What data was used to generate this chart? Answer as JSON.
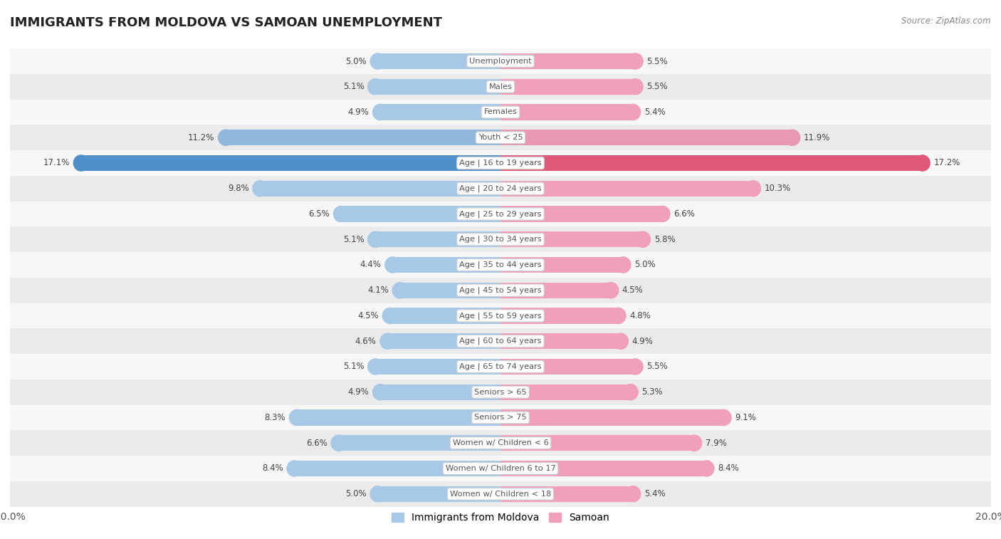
{
  "title": "IMMIGRANTS FROM MOLDOVA VS SAMOAN UNEMPLOYMENT",
  "source": "Source: ZipAtlas.com",
  "categories": [
    "Unemployment",
    "Males",
    "Females",
    "Youth < 25",
    "Age | 16 to 19 years",
    "Age | 20 to 24 years",
    "Age | 25 to 29 years",
    "Age | 30 to 34 years",
    "Age | 35 to 44 years",
    "Age | 45 to 54 years",
    "Age | 55 to 59 years",
    "Age | 60 to 64 years",
    "Age | 65 to 74 years",
    "Seniors > 65",
    "Seniors > 75",
    "Women w/ Children < 6",
    "Women w/ Children 6 to 17",
    "Women w/ Children < 18"
  ],
  "moldova_values": [
    5.0,
    5.1,
    4.9,
    11.2,
    17.1,
    9.8,
    6.5,
    5.1,
    4.4,
    4.1,
    4.5,
    4.6,
    5.1,
    4.9,
    8.3,
    6.6,
    8.4,
    5.0
  ],
  "samoan_values": [
    5.5,
    5.5,
    5.4,
    11.9,
    17.2,
    10.3,
    6.6,
    5.8,
    5.0,
    4.5,
    4.8,
    4.9,
    5.5,
    5.3,
    9.1,
    7.9,
    8.4,
    5.4
  ],
  "moldova_color": "#a8c8e8",
  "samoan_color": "#f0a0b8",
  "moldova_highlight_color": "#5090c8",
  "samoan_highlight_color": "#e05878",
  "youth_color_moldova": "#90b8dc",
  "youth_color_samoan": "#e898b0",
  "highlight_row": 4,
  "youth_row": 3,
  "background_color": "#ffffff",
  "row_alt_color": "#ebebeb",
  "row_main_color": "#f7f7f7",
  "axis_max": 20.0,
  "legend_moldova": "Immigrants from Moldova",
  "legend_samoan": "Samoan",
  "bar_height": 0.62
}
